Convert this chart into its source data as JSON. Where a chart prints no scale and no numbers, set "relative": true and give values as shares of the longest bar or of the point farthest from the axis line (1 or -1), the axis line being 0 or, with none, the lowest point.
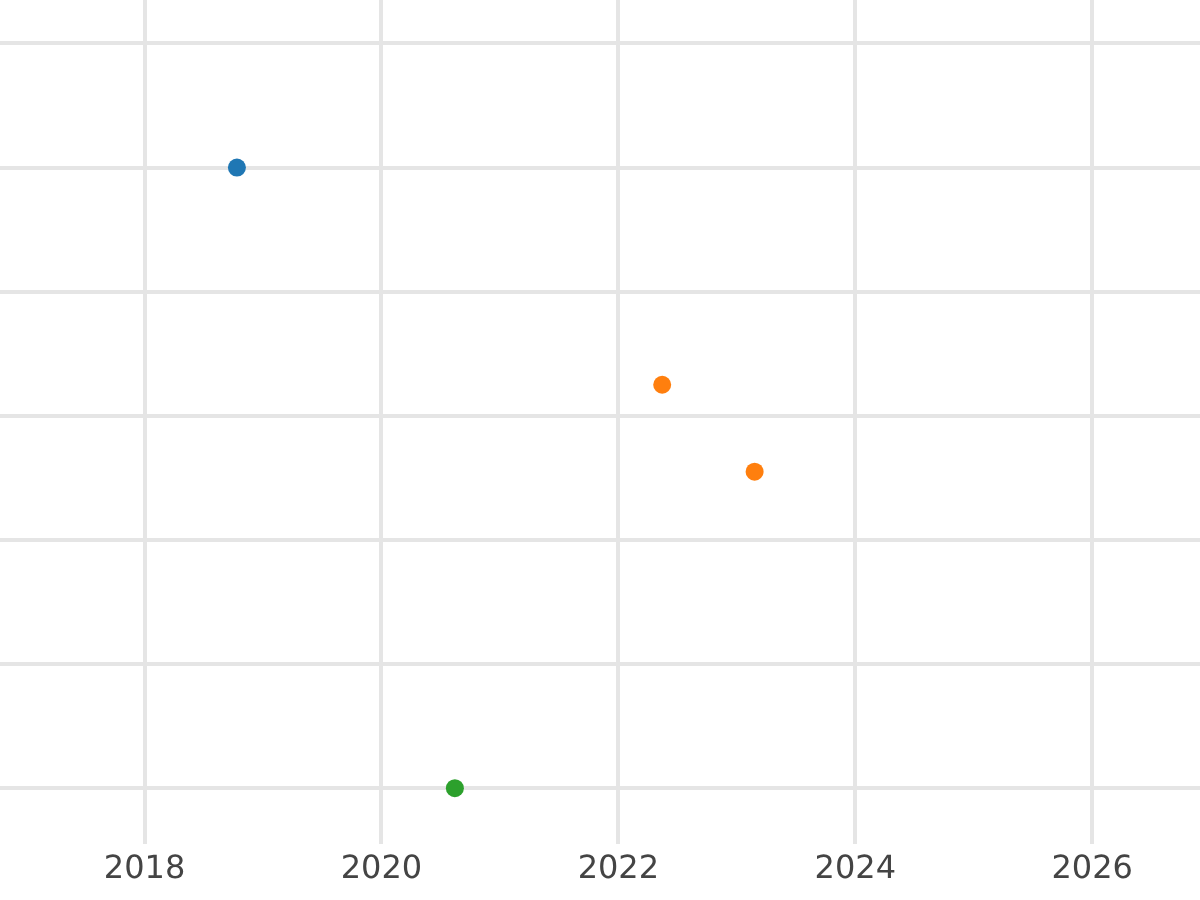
{
  "chart_data": {
    "type": "scatter",
    "relative": true,
    "grid": true,
    "marker": "circle",
    "xlim": [
      2016.78,
      2026.91
    ],
    "xticks": [
      2018,
      2020,
      2022,
      2024,
      2026
    ],
    "series": [
      {
        "color": "#1f77b4",
        "x": [
          2018.78
        ],
        "values": [
          1
        ]
      },
      {
        "color": "#ff7f0e",
        "x": [
          2022.37,
          2023.15
        ],
        "values": [
          0.65,
          0.51
        ]
      },
      {
        "color": "#2ca02c",
        "x": [
          2020.62
        ],
        "values": [
          0
        ]
      }
    ]
  }
}
